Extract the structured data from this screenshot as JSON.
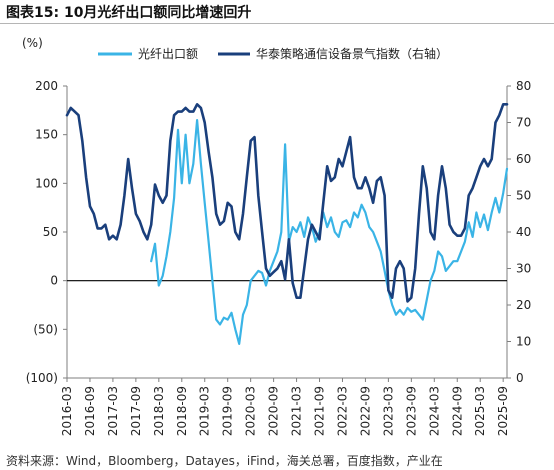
{
  "figure": {
    "title": "图表15:  10月光纤出口额同比增速回升",
    "source": "资料来源：Wind，Bloomberg，Datayes，iFind，海关总署，百度指数，产业在"
  },
  "chart_data": {
    "type": "line",
    "left_axis_unit": "(%)",
    "ylim_left": [
      -100,
      200
    ],
    "yticks_left": [
      -100,
      -50,
      0,
      50,
      100,
      150,
      200
    ],
    "ytick_labels_left": [
      "(100)",
      "(50)",
      "0",
      "50",
      "100",
      "150",
      "200"
    ],
    "ylim_right": [
      0,
      80
    ],
    "yticks_right": [
      0,
      10,
      20,
      30,
      40,
      50,
      60,
      70,
      80
    ],
    "x_tick_labels": [
      "2016-03",
      "2016-09",
      "2017-03",
      "2017-09",
      "2018-03",
      "2018-09",
      "2019-03",
      "2019-09",
      "2020-03",
      "2020-09",
      "2021-03",
      "2021-09",
      "2022-03",
      "2022-09",
      "2023-03",
      "2023-09",
      "2024-03",
      "2024-09",
      "2025-03",
      "2025-09"
    ],
    "legend_position": "top",
    "colors": {
      "export": "#3ab4e6",
      "index": "#1a3f7c"
    },
    "series": [
      {
        "name": "光纤出口额",
        "axis": "left",
        "points": [
          [
            "2018-01",
            20
          ],
          [
            "2018-02",
            38
          ],
          [
            "2018-03",
            -5
          ],
          [
            "2018-04",
            5
          ],
          [
            "2018-05",
            25
          ],
          [
            "2018-06",
            50
          ],
          [
            "2018-07",
            85
          ],
          [
            "2018-08",
            155
          ],
          [
            "2018-09",
            100
          ],
          [
            "2018-10",
            150
          ],
          [
            "2018-11",
            100
          ],
          [
            "2018-12",
            120
          ],
          [
            "2019-01",
            165
          ],
          [
            "2019-02",
            120
          ],
          [
            "2019-03",
            80
          ],
          [
            "2019-04",
            40
          ],
          [
            "2019-05",
            0
          ],
          [
            "2019-06",
            -40
          ],
          [
            "2019-07",
            -45
          ],
          [
            "2019-08",
            -38
          ],
          [
            "2019-09",
            -40
          ],
          [
            "2019-10",
            -33
          ],
          [
            "2019-11",
            -50
          ],
          [
            "2019-12",
            -65
          ],
          [
            "2020-01",
            -35
          ],
          [
            "2020-02",
            -25
          ],
          [
            "2020-03",
            0
          ],
          [
            "2020-04",
            5
          ],
          [
            "2020-05",
            10
          ],
          [
            "2020-06",
            8
          ],
          [
            "2020-07",
            -5
          ],
          [
            "2020-08",
            10
          ],
          [
            "2020-09",
            20
          ],
          [
            "2020-10",
            30
          ],
          [
            "2020-11",
            50
          ],
          [
            "2020-12",
            140
          ],
          [
            "2021-01",
            40
          ],
          [
            "2021-02",
            55
          ],
          [
            "2021-03",
            50
          ],
          [
            "2021-04",
            60
          ],
          [
            "2021-05",
            45
          ],
          [
            "2021-06",
            65
          ],
          [
            "2021-07",
            55
          ],
          [
            "2021-08",
            40
          ],
          [
            "2021-09",
            50
          ],
          [
            "2021-10",
            70
          ],
          [
            "2021-11",
            55
          ],
          [
            "2021-12",
            65
          ],
          [
            "2022-01",
            50
          ],
          [
            "2022-02",
            45
          ],
          [
            "2022-03",
            60
          ],
          [
            "2022-04",
            62
          ],
          [
            "2022-05",
            55
          ],
          [
            "2022-06",
            70
          ],
          [
            "2022-07",
            65
          ],
          [
            "2022-08",
            78
          ],
          [
            "2022-09",
            70
          ],
          [
            "2022-10",
            55
          ],
          [
            "2022-11",
            50
          ],
          [
            "2022-12",
            40
          ],
          [
            "2023-01",
            30
          ],
          [
            "2023-02",
            10
          ],
          [
            "2023-03",
            -10
          ],
          [
            "2023-04",
            -25
          ],
          [
            "2023-05",
            -35
          ],
          [
            "2023-06",
            -30
          ],
          [
            "2023-07",
            -35
          ],
          [
            "2023-08",
            -28
          ],
          [
            "2023-09",
            -32
          ],
          [
            "2023-10",
            -30
          ],
          [
            "2023-11",
            -35
          ],
          [
            "2023-12",
            -40
          ],
          [
            "2024-01",
            -20
          ],
          [
            "2024-02",
            0
          ],
          [
            "2024-03",
            10
          ],
          [
            "2024-04",
            30
          ],
          [
            "2024-05",
            25
          ],
          [
            "2024-06",
            10
          ],
          [
            "2024-07",
            15
          ],
          [
            "2024-08",
            20
          ],
          [
            "2024-09",
            20
          ],
          [
            "2024-10",
            30
          ],
          [
            "2024-11",
            40
          ],
          [
            "2024-12",
            60
          ],
          [
            "2025-01",
            45
          ],
          [
            "2025-02",
            70
          ],
          [
            "2025-03",
            55
          ],
          [
            "2025-04",
            68
          ],
          [
            "2025-05",
            52
          ],
          [
            "2025-06",
            70
          ],
          [
            "2025-07",
            85
          ],
          [
            "2025-08",
            70
          ],
          [
            "2025-09",
            90
          ],
          [
            "2025-10",
            115
          ]
        ]
      },
      {
        "name": "华泰策略通信设备景气指数（右轴）",
        "axis": "right",
        "points": [
          [
            "2016-03",
            72
          ],
          [
            "2016-04",
            74
          ],
          [
            "2016-05",
            73
          ],
          [
            "2016-06",
            72
          ],
          [
            "2016-07",
            65
          ],
          [
            "2016-08",
            55
          ],
          [
            "2016-09",
            47
          ],
          [
            "2016-10",
            45
          ],
          [
            "2016-11",
            41
          ],
          [
            "2016-12",
            41
          ],
          [
            "2017-01",
            42
          ],
          [
            "2017-02",
            38
          ],
          [
            "2017-03",
            39
          ],
          [
            "2017-04",
            38
          ],
          [
            "2017-05",
            42
          ],
          [
            "2017-06",
            50
          ],
          [
            "2017-07",
            60
          ],
          [
            "2017-08",
            52
          ],
          [
            "2017-09",
            45
          ],
          [
            "2017-10",
            43
          ],
          [
            "2017-11",
            40
          ],
          [
            "2017-12",
            38
          ],
          [
            "2018-01",
            42
          ],
          [
            "2018-02",
            53
          ],
          [
            "2018-03",
            50
          ],
          [
            "2018-04",
            48
          ],
          [
            "2018-05",
            50
          ],
          [
            "2018-06",
            65
          ],
          [
            "2018-07",
            72
          ],
          [
            "2018-08",
            73
          ],
          [
            "2018-09",
            73
          ],
          [
            "2018-10",
            74
          ],
          [
            "2018-11",
            73
          ],
          [
            "2018-12",
            73
          ],
          [
            "2019-01",
            75
          ],
          [
            "2019-02",
            74
          ],
          [
            "2019-03",
            70
          ],
          [
            "2019-04",
            62
          ],
          [
            "2019-05",
            55
          ],
          [
            "2019-06",
            45
          ],
          [
            "2019-07",
            42
          ],
          [
            "2019-08",
            43
          ],
          [
            "2019-09",
            48
          ],
          [
            "2019-10",
            47
          ],
          [
            "2019-11",
            40
          ],
          [
            "2019-12",
            38
          ],
          [
            "2020-01",
            45
          ],
          [
            "2020-02",
            55
          ],
          [
            "2020-03",
            65
          ],
          [
            "2020-04",
            66
          ],
          [
            "2020-05",
            50
          ],
          [
            "2020-06",
            40
          ],
          [
            "2020-07",
            30
          ],
          [
            "2020-08",
            28
          ],
          [
            "2020-09",
            29
          ],
          [
            "2020-10",
            30
          ],
          [
            "2020-11",
            32
          ],
          [
            "2020-12",
            27
          ],
          [
            "2021-01",
            38
          ],
          [
            "2021-02",
            26
          ],
          [
            "2021-03",
            22
          ],
          [
            "2021-04",
            22
          ],
          [
            "2021-05",
            30
          ],
          [
            "2021-06",
            38
          ],
          [
            "2021-07",
            42
          ],
          [
            "2021-08",
            40
          ],
          [
            "2021-09",
            38
          ],
          [
            "2021-10",
            48
          ],
          [
            "2021-11",
            58
          ],
          [
            "2021-12",
            54
          ],
          [
            "2022-01",
            55
          ],
          [
            "2022-02",
            60
          ],
          [
            "2022-03",
            58
          ],
          [
            "2022-04",
            62
          ],
          [
            "2022-05",
            66
          ],
          [
            "2022-06",
            55
          ],
          [
            "2022-07",
            52
          ],
          [
            "2022-08",
            52
          ],
          [
            "2022-09",
            55
          ],
          [
            "2022-10",
            52
          ],
          [
            "2022-11",
            48
          ],
          [
            "2022-12",
            54
          ],
          [
            "2023-01",
            55
          ],
          [
            "2023-02",
            50
          ],
          [
            "2023-03",
            24
          ],
          [
            "2023-04",
            22
          ],
          [
            "2023-05",
            30
          ],
          [
            "2023-06",
            32
          ],
          [
            "2023-07",
            30
          ],
          [
            "2023-08",
            21
          ],
          [
            "2023-09",
            22
          ],
          [
            "2023-10",
            30
          ],
          [
            "2023-11",
            45
          ],
          [
            "2023-12",
            58
          ],
          [
            "2024-01",
            52
          ],
          [
            "2024-02",
            40
          ],
          [
            "2024-03",
            38
          ],
          [
            "2024-04",
            50
          ],
          [
            "2024-05",
            58
          ],
          [
            "2024-06",
            52
          ],
          [
            "2024-07",
            42
          ],
          [
            "2024-08",
            40
          ],
          [
            "2024-09",
            39
          ],
          [
            "2024-10",
            39
          ],
          [
            "2024-11",
            41
          ],
          [
            "2024-12",
            50
          ],
          [
            "2025-01",
            52
          ],
          [
            "2025-02",
            55
          ],
          [
            "2025-03",
            58
          ],
          [
            "2025-04",
            60
          ],
          [
            "2025-05",
            58
          ],
          [
            "2025-06",
            60
          ],
          [
            "2025-07",
            70
          ],
          [
            "2025-08",
            72
          ],
          [
            "2025-09",
            75
          ],
          [
            "2025-10",
            75
          ]
        ]
      }
    ]
  }
}
